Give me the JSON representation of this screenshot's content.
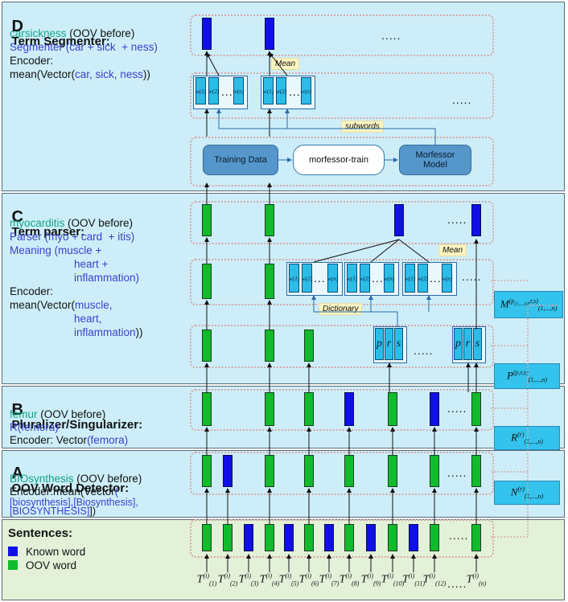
{
  "panels": {
    "D": {
      "letter": "D",
      "title": "Term Segmenter:",
      "word": "carsickness",
      "oov": " (OOV before)",
      "line2": "Segmenter (car + sick  + ness)",
      "line3": "Encoder:",
      "line4a": "mean(Vector(",
      "line4b": "car, sick, ness",
      "line4c": "))",
      "mean_tag": "Mean",
      "subwords_tag": "subwords",
      "flow": [
        "Training Data",
        "morfessor-train",
        "Morfessor\nModel"
      ],
      "sub_labels": [
        "w(1)",
        "w(2)",
        "w(n)"
      ],
      "ellipsis": "....."
    },
    "C": {
      "letter": "C",
      "title": "Term parser:",
      "word": "myocarditis",
      "oov": " (OOV before)",
      "line2": "Parser (myo + card  + itis)",
      "line3": "Meaning (muscle +",
      "line4": "heart +",
      "line5": "inflammation)",
      "line6": "Encoder:",
      "line7a": "mean(Vector(",
      "line7b": "muscle,",
      "line8": "heart,",
      "line9a": "inflammation",
      "line9b": "))",
      "mean_tag": "Mean",
      "dictionary_tag": "Dictionary",
      "prs": [
        "p",
        "r",
        "s"
      ],
      "ellipsis": "....."
    },
    "B": {
      "letter": "B",
      "title": "Pluralizer/Singularizer:",
      "word": "femur",
      "oov": " (OOV before)",
      "line2": "R(femora)",
      "line3a": "Encoder: Vector",
      "line3b": "(femora)",
      "ellipsis": "....."
    },
    "A": {
      "letter": "A",
      "title": "OOV Word Detector:",
      "word": "BIOsynthesis",
      "oov": " (OOV before)",
      "line2a": "Encoder:mean(Vector",
      "line2b": "(",
      "line3": "[biosynthesis],[Biosynthesis],",
      "line4a": "[BIOSYNTHESIS]",
      "line4b": "])",
      "ellipsis": "....."
    },
    "S": {
      "title": "Sentences:",
      "legend": [
        {
          "label": "Known word",
          "color": "#1010e6"
        },
        {
          "label": "OOV word",
          "color": "#11bb2b"
        }
      ],
      "ellipsis": "....."
    }
  },
  "side_labels": {
    "M": {
      "base": "M",
      "sup": "(p",
      "sub": "(1,...,n)"
    },
    "P": {
      "base": "P",
      "sup": "(p,r,s)",
      "sub": "(1,...,n)"
    },
    "R": {
      "base": "R",
      "sup": "(r)",
      "sub": "(1,...,n)"
    },
    "N": {
      "base": "N",
      "sup": "(r)",
      "sub": "(1,...,n)"
    }
  },
  "tokens": {
    "base": "T",
    "sup": "(i)",
    "subs": [
      "(1)",
      "(2)",
      "(3)",
      "(4)",
      "(5)",
      "(6)",
      "(7)",
      "(8)",
      "(9)",
      "(10)",
      "(11)",
      "(12)",
      "(n)"
    ],
    "ellipsis": "....."
  },
  "rows": {
    "sentences": [
      "g",
      "g",
      "b",
      "g",
      "b",
      "g",
      "b",
      "g",
      "b",
      "g",
      "b",
      "g",
      "g"
    ],
    "A": [
      "g",
      "b",
      "",
      "g",
      "",
      "g",
      "",
      "g",
      "",
      "g",
      "",
      "g",
      "g"
    ],
    "B": [
      "g",
      "",
      "",
      "g",
      "",
      "g",
      "",
      "b",
      "",
      "g",
      "",
      "b",
      "g"
    ],
    "C1": [
      "g",
      "",
      "",
      "g",
      "",
      "g"
    ],
    "C3": [
      "g",
      "",
      "",
      "g",
      "",
      "",
      "",
      "",
      "",
      "",
      "",
      "b",
      "b"
    ],
    "C2": [
      "g",
      "",
      "",
      "g"
    ],
    "D": [
      "b",
      "",
      "",
      "b"
    ]
  },
  "colors": {
    "green": "#11bb2b",
    "blue": "#1010e6",
    "panel": "#cdeef9",
    "sentence_panel": "#e3f1d9"
  }
}
